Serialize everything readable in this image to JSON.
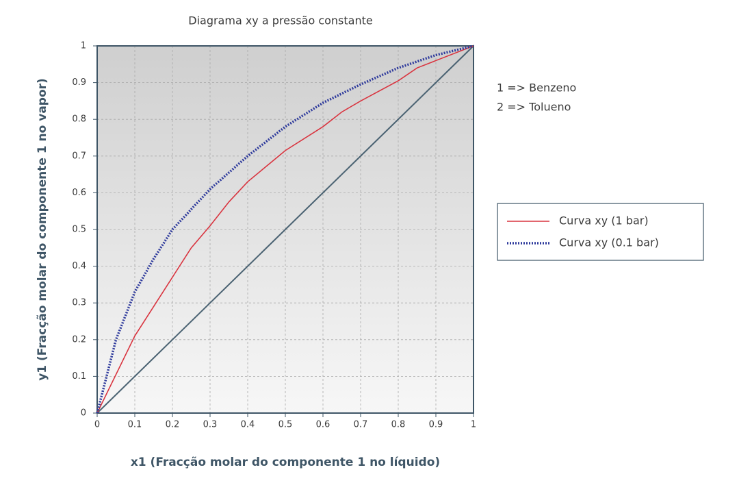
{
  "chart_data": {
    "type": "line",
    "title": "Diagrama xy a pressão constante",
    "xlabel": "x1  (Fracção molar do componente 1 no líquido)",
    "ylabel": "y1  (Fracção molar do componente 1 no vapor)",
    "annotations": [
      "1 => Benzeno",
      "2 => Tolueno"
    ],
    "xlim": [
      0,
      1
    ],
    "ylim": [
      0,
      1
    ],
    "xticks": [
      0,
      0.1,
      0.2,
      0.3,
      0.4,
      0.5,
      0.6,
      0.7,
      0.8,
      0.9,
      1
    ],
    "yticks": [
      0,
      0.1,
      0.2,
      0.3,
      0.4,
      0.5,
      0.6,
      0.7,
      0.8,
      0.9,
      1
    ],
    "grid": true,
    "series": [
      {
        "name": "Curva  xy  (1 bar)",
        "color": "#d9343f",
        "style": "solid",
        "x": [
          0,
          0.1,
          0.2,
          0.25,
          0.3,
          0.35,
          0.4,
          0.5,
          0.6,
          0.65,
          0.7,
          0.8,
          0.85,
          0.9,
          1
        ],
        "values": [
          0,
          0.21,
          0.37,
          0.45,
          0.51,
          0.575,
          0.63,
          0.715,
          0.78,
          0.82,
          0.85,
          0.905,
          0.94,
          0.96,
          1
        ]
      },
      {
        "name": "Curva  xy  (0.1 bar)",
        "color": "#2e3a9c",
        "style": "dotted",
        "x": [
          0,
          0.05,
          0.1,
          0.15,
          0.2,
          0.3,
          0.4,
          0.5,
          0.6,
          0.7,
          0.8,
          0.9,
          1
        ],
        "values": [
          0,
          0.2,
          0.33,
          0.42,
          0.5,
          0.61,
          0.7,
          0.78,
          0.845,
          0.895,
          0.94,
          0.975,
          1
        ]
      }
    ],
    "reference_line": {
      "color": "#4a6272",
      "x": [
        0,
        1
      ],
      "values": [
        0,
        1
      ]
    }
  }
}
